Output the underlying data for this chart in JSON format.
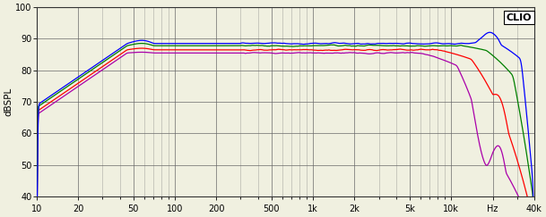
{
  "title": "CLIO",
  "ylabel": "dBSPL",
  "xmin": 10,
  "xmax": 40000,
  "ymin": 40,
  "ymax": 100,
  "yticks": [
    40,
    50,
    60,
    70,
    80,
    90,
    100
  ],
  "xtick_labels": [
    "10",
    "20",
    "50",
    "100",
    "200",
    "500",
    "1k",
    "2k",
    "5k",
    "10k",
    "Hz",
    "40k"
  ],
  "xtick_positions": [
    10,
    20,
    50,
    100,
    200,
    500,
    1000,
    2000,
    5000,
    10000,
    20000,
    40000
  ],
  "background_color": "#f0f0e0",
  "grid_color": "#666666",
  "line_colors": [
    "#0000ff",
    "#008000",
    "#ff0000",
    "#aa00aa"
  ],
  "clio_box_color": "#ffffff"
}
